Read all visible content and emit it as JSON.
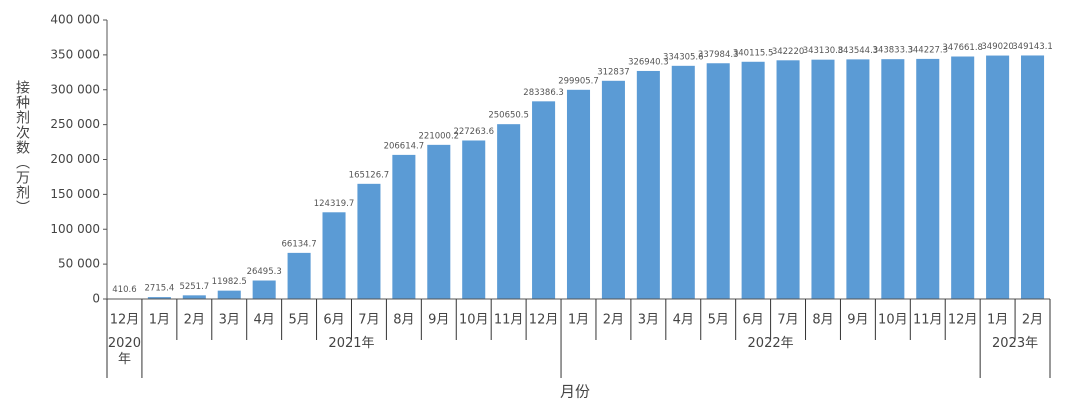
{
  "chart_data": {
    "type": "bar",
    "y_label": "接种剂次数（万剂）",
    "x_label": "月份",
    "categories": [
      "12月",
      "1月",
      "2月",
      "3月",
      "4月",
      "5月",
      "6月",
      "7月",
      "8月",
      "9月",
      "10月",
      "11月",
      "12月",
      "1月",
      "2月",
      "3月",
      "4月",
      "5月",
      "6月",
      "7月",
      "8月",
      "9月",
      "10月",
      "11月",
      "12月",
      "1月",
      "2月"
    ],
    "year_groups": [
      {
        "label": "2020年",
        "count": 1
      },
      {
        "label": "2021年",
        "count": 12
      },
      {
        "label": "2022年",
        "count": 12
      },
      {
        "label": "2023年",
        "count": 2
      }
    ],
    "values": [
      410.6,
      2715.4,
      5251.7,
      11982.5,
      26495.3,
      66134.7,
      124319.7,
      165126.7,
      206614.7,
      221000.2,
      227263.6,
      250650.5,
      283386.3,
      299905.7,
      312837,
      326940.3,
      334305.6,
      337984.3,
      340115.5,
      342220,
      343130.8,
      343544.3,
      343833.3,
      344227.3,
      347661.8,
      349020,
      349143.1
    ],
    "color": "#5b9bd5",
    "ylim": [
      0,
      400000
    ],
    "yticks": [
      0,
      {
        "value": 50000,
        "label": "50 000"
      },
      {
        "value": 100000,
        "label": "100 000"
      },
      {
        "value": 150000,
        "label": "150 000"
      },
      {
        "value": 200000,
        "label": "200 000"
      },
      {
        "value": 250000,
        "label": "250 000"
      },
      {
        "value": 300000,
        "label": "300 000"
      },
      {
        "value": 350000,
        "label": "350 000"
      },
      {
        "value": 400000,
        "label": "400 000"
      }
    ]
  }
}
